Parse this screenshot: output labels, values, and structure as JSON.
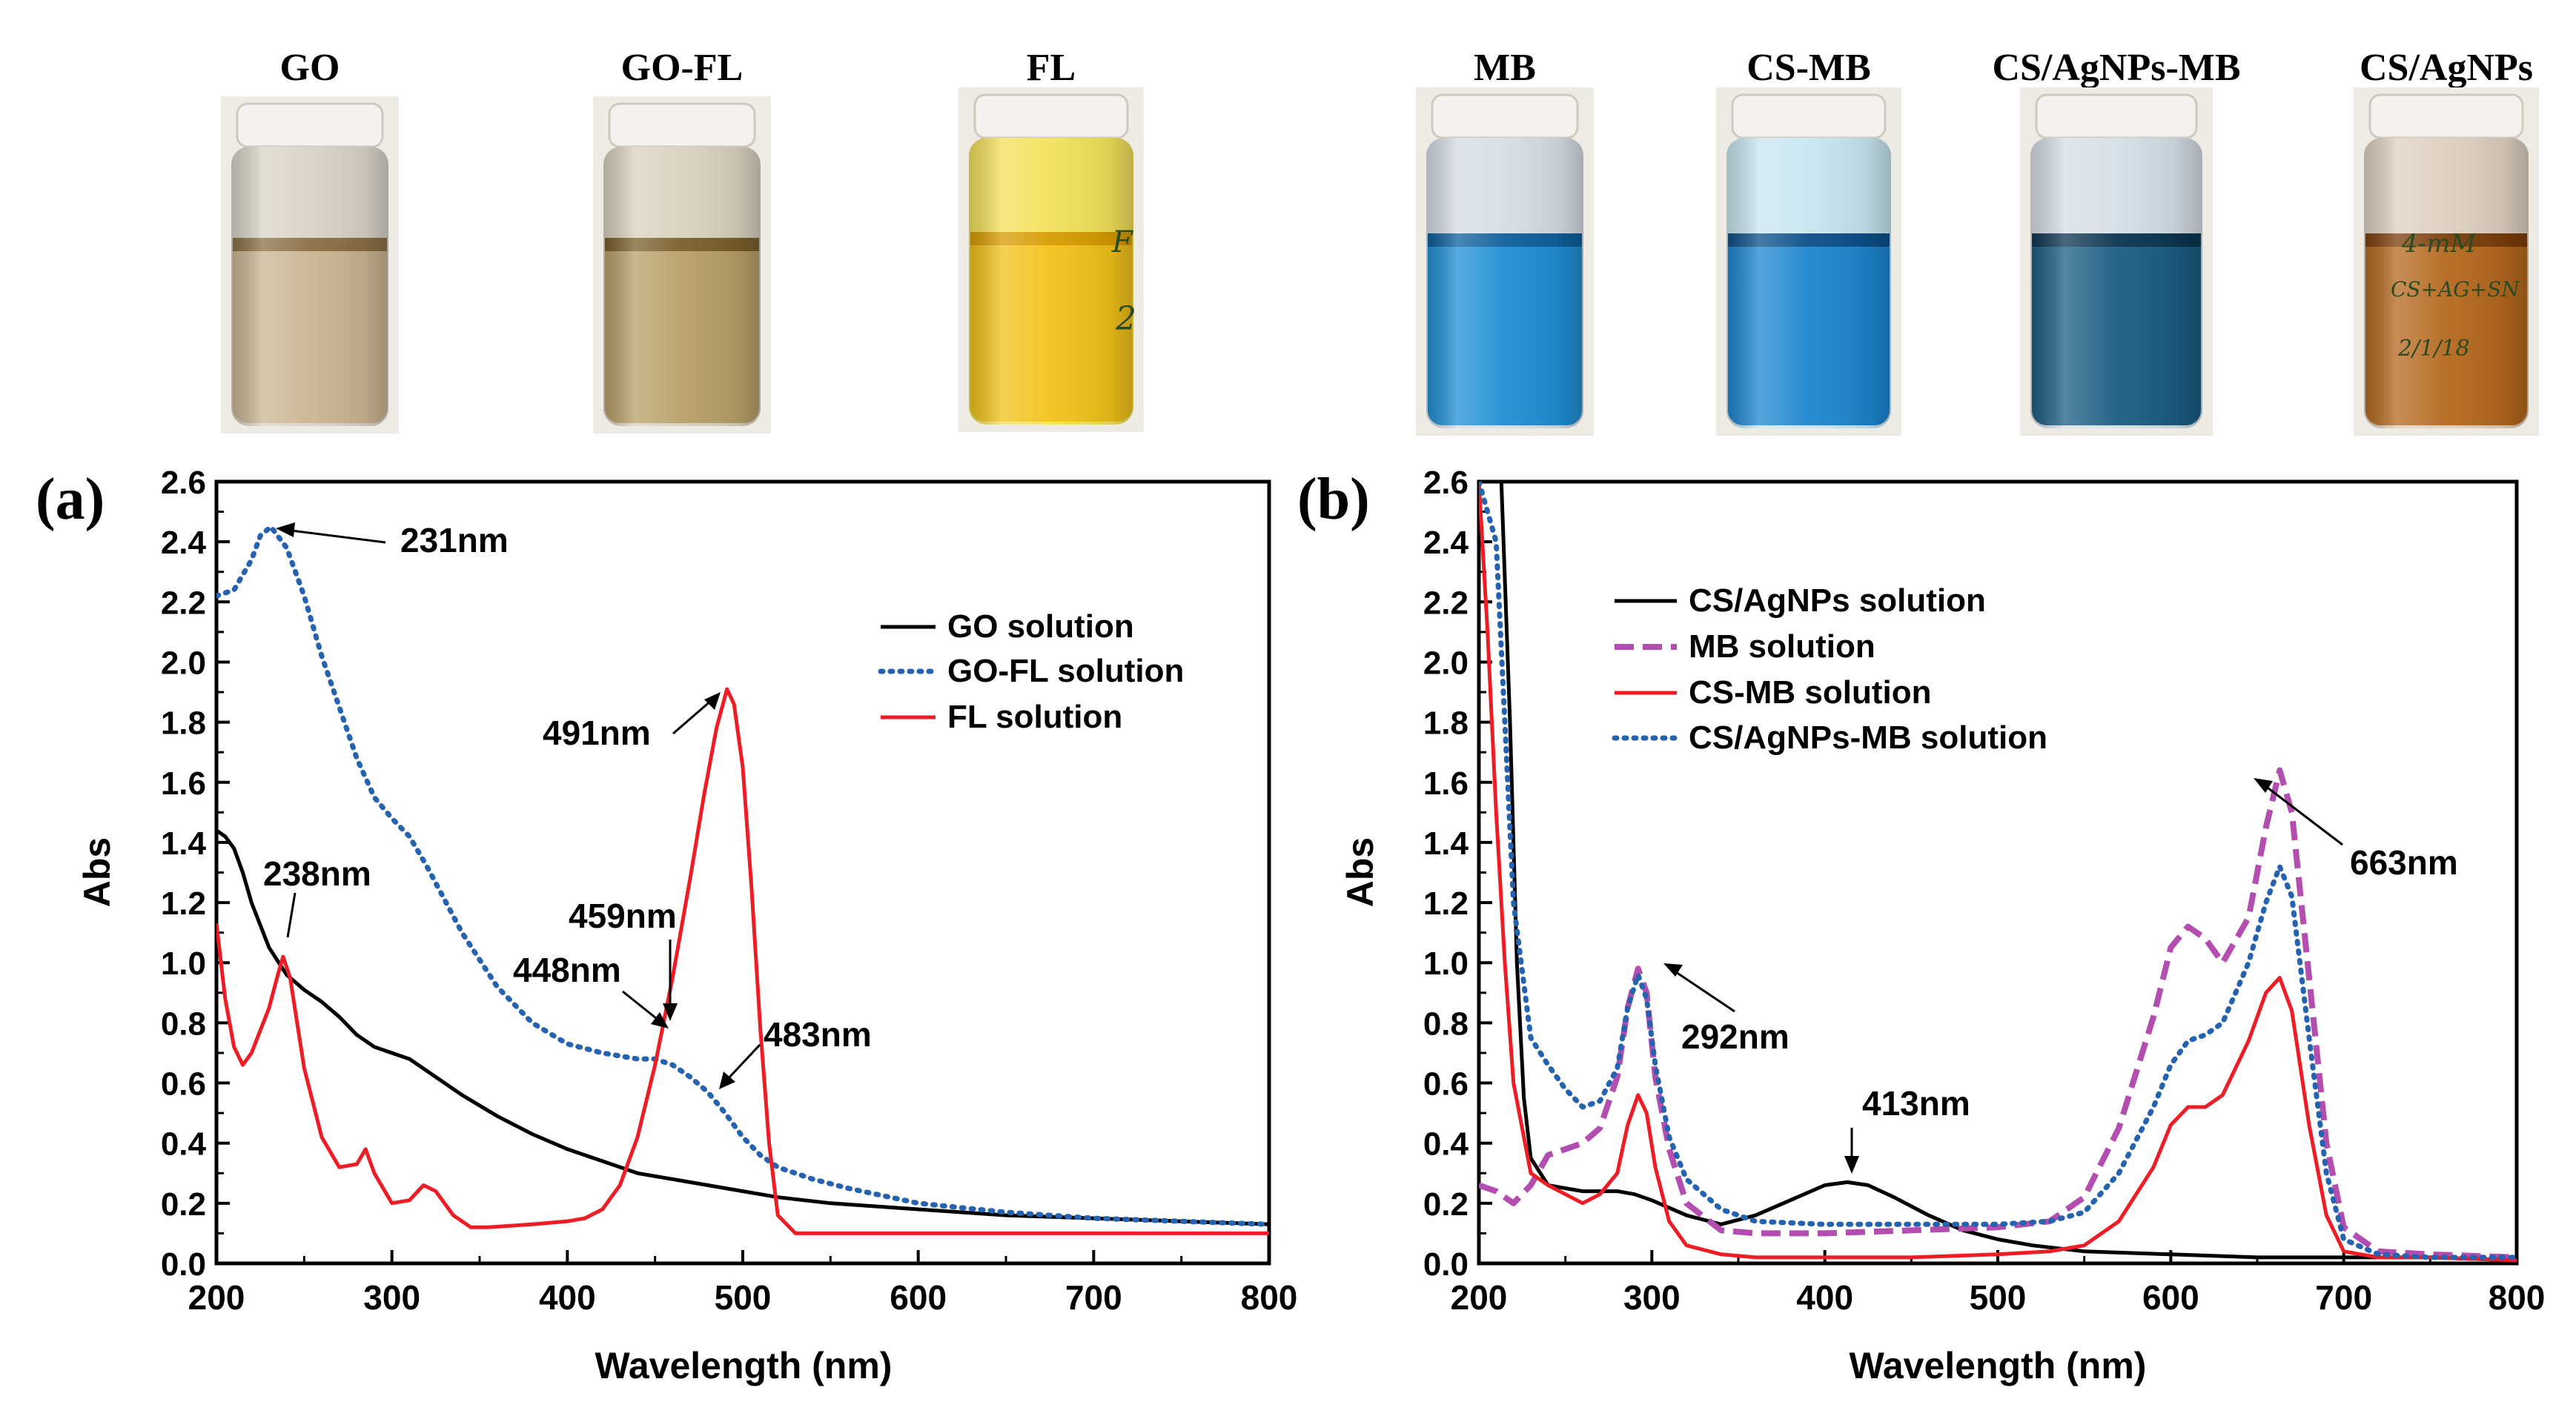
{
  "vials": [
    {
      "label": "GO",
      "liquid": "#c9b592",
      "top_liquid": "#8a6f45",
      "glass": "#d9d4c9"
    },
    {
      "label": "GO-FL",
      "liquid": "#b7a068",
      "top_liquid": "#7a5f2c",
      "glass": "#d8d2c0"
    },
    {
      "label": "FL",
      "liquid": "#f1c21a",
      "top_liquid": "#d89b00",
      "glass": "#f3e15a"
    },
    {
      "label": "MB",
      "liquid": "#1f8fd3",
      "top_liquid": "#0d5f9c",
      "glass": "#d6dde4"
    },
    {
      "label": "CS-MB",
      "liquid": "#1d86cf",
      "top_liquid": "#0b4f88",
      "glass": "#c9e6f0"
    },
    {
      "label": "CS/AgNPs-MB",
      "liquid": "#1b5c82",
      "top_liquid": "#0c3550",
      "glass": "#d5dfe6"
    },
    {
      "label": "CS/AgNPs",
      "liquid": "#b4681e",
      "top_liquid": "#7b3d0a",
      "glass": "#ddd0c0"
    }
  ],
  "vial_handwriting": {
    "fl": "F",
    "fl2": "2",
    "cs_agnps_1": "4-mM",
    "cs_agnps_2": "CS+AG+SN",
    "cs_agnps_3": "2/1/18"
  },
  "chart_data": [
    {
      "panel": "(a)",
      "type": "line",
      "xlabel": "Wavelength (nm)",
      "ylabel": "Abs",
      "xlim": [
        200,
        800
      ],
      "ylim": [
        0,
        2.6
      ],
      "xticks": [
        200,
        300,
        400,
        500,
        600,
        700,
        800
      ],
      "yticks": [
        "0.0",
        "0.2",
        "0.4",
        "0.6",
        "0.8",
        "1.0",
        "1.2",
        "1.4",
        "1.6",
        "1.8",
        "2.0",
        "2.2",
        "2.4",
        "2.6"
      ],
      "legend": "top-right",
      "series": [
        {
          "name": "GO solution",
          "color": "#000000",
          "style": "solid",
          "x": [
            200,
            205,
            210,
            215,
            220,
            230,
            240,
            250,
            260,
            270,
            280,
            290,
            300,
            310,
            320,
            340,
            360,
            380,
            400,
            420,
            440,
            460,
            480,
            500,
            520,
            550,
            600,
            650,
            700,
            750,
            800
          ],
          "y": [
            1.44,
            1.42,
            1.38,
            1.3,
            1.2,
            1.05,
            0.96,
            0.91,
            0.87,
            0.82,
            0.76,
            0.72,
            0.7,
            0.68,
            0.64,
            0.56,
            0.49,
            0.43,
            0.38,
            0.34,
            0.3,
            0.28,
            0.26,
            0.24,
            0.22,
            0.2,
            0.18,
            0.16,
            0.15,
            0.14,
            0.13
          ]
        },
        {
          "name": "GO-FL solution",
          "color": "#2563b0",
          "style": "dotted",
          "x": [
            200,
            210,
            220,
            225,
            231,
            240,
            250,
            260,
            270,
            280,
            290,
            300,
            310,
            320,
            340,
            360,
            380,
            400,
            420,
            440,
            450,
            460,
            470,
            480,
            490,
            500,
            510,
            520,
            540,
            560,
            600,
            650,
            700,
            750,
            800
          ],
          "y": [
            2.22,
            2.24,
            2.34,
            2.42,
            2.45,
            2.38,
            2.22,
            2.02,
            1.85,
            1.68,
            1.55,
            1.48,
            1.42,
            1.32,
            1.1,
            0.92,
            0.8,
            0.73,
            0.7,
            0.68,
            0.68,
            0.66,
            0.62,
            0.57,
            0.5,
            0.42,
            0.36,
            0.32,
            0.28,
            0.25,
            0.2,
            0.17,
            0.15,
            0.14,
            0.13
          ]
        },
        {
          "name": "FL solution",
          "color": "#ee1c25",
          "style": "solid",
          "x": [
            200,
            205,
            210,
            215,
            220,
            230,
            235,
            238,
            242,
            250,
            260,
            270,
            280,
            285,
            290,
            300,
            310,
            318,
            325,
            335,
            345,
            355,
            380,
            400,
            410,
            420,
            430,
            440,
            450,
            460,
            470,
            478,
            485,
            491,
            495,
            500,
            505,
            510,
            515,
            520,
            530,
            550,
            600,
            700,
            800
          ],
          "y": [
            1.13,
            0.88,
            0.72,
            0.66,
            0.7,
            0.85,
            0.96,
            1.02,
            0.95,
            0.65,
            0.42,
            0.32,
            0.33,
            0.38,
            0.3,
            0.2,
            0.21,
            0.26,
            0.24,
            0.16,
            0.12,
            0.12,
            0.13,
            0.14,
            0.15,
            0.18,
            0.26,
            0.42,
            0.66,
            0.95,
            1.28,
            1.56,
            1.78,
            1.91,
            1.86,
            1.65,
            1.25,
            0.78,
            0.4,
            0.16,
            0.1,
            0.1,
            0.1,
            0.1,
            0.1
          ]
        }
      ],
      "annotations": [
        "231nm",
        "238nm",
        "491nm",
        "459nm",
        "448nm",
        "483nm"
      ]
    },
    {
      "panel": "(b)",
      "type": "line",
      "xlabel": "Wavelength (nm)",
      "ylabel": "Abs",
      "xlim": [
        200,
        800
      ],
      "ylim": [
        0,
        2.6
      ],
      "xticks": [
        200,
        300,
        400,
        500,
        600,
        700,
        800
      ],
      "yticks": [
        "0.0",
        "0.2",
        "0.4",
        "0.6",
        "0.8",
        "1.0",
        "1.2",
        "1.4",
        "1.6",
        "1.8",
        "2.0",
        "2.2",
        "2.4",
        "2.6"
      ],
      "legend": "top-left",
      "series": [
        {
          "name": "CS/AgNPs solution",
          "color": "#000000",
          "style": "solid",
          "x": [
            213,
            218,
            222,
            226,
            230,
            240,
            250,
            260,
            270,
            280,
            290,
            300,
            320,
            340,
            360,
            380,
            400,
            413,
            425,
            440,
            460,
            480,
            500,
            520,
            550,
            600,
            650,
            700,
            750,
            800
          ],
          "y": [
            2.6,
            1.8,
            1.0,
            0.55,
            0.35,
            0.26,
            0.25,
            0.24,
            0.24,
            0.24,
            0.23,
            0.21,
            0.16,
            0.13,
            0.16,
            0.21,
            0.26,
            0.27,
            0.26,
            0.22,
            0.16,
            0.11,
            0.08,
            0.06,
            0.04,
            0.03,
            0.02,
            0.02,
            0.02,
            0.01
          ]
        },
        {
          "name": "MB solution",
          "color": "#b44db0",
          "style": "dashed",
          "x": [
            200,
            210,
            220,
            230,
            240,
            250,
            260,
            270,
            280,
            286,
            292,
            297,
            302,
            310,
            320,
            340,
            360,
            400,
            450,
            500,
            530,
            550,
            570,
            590,
            600,
            610,
            620,
            630,
            645,
            655,
            663,
            670,
            680,
            690,
            700,
            720,
            750,
            800
          ],
          "y": [
            0.26,
            0.24,
            0.2,
            0.26,
            0.36,
            0.38,
            0.4,
            0.45,
            0.62,
            0.85,
            0.98,
            0.9,
            0.62,
            0.38,
            0.2,
            0.11,
            0.1,
            0.1,
            0.11,
            0.12,
            0.14,
            0.22,
            0.45,
            0.82,
            1.05,
            1.12,
            1.08,
            1.0,
            1.15,
            1.45,
            1.64,
            1.5,
            0.95,
            0.4,
            0.12,
            0.04,
            0.03,
            0.02
          ]
        },
        {
          "name": "CS-MB solution",
          "color": "#ee1c25",
          "style": "solid",
          "x": [
            200,
            205,
            210,
            215,
            220,
            230,
            240,
            250,
            260,
            270,
            280,
            286,
            292,
            297,
            302,
            310,
            320,
            340,
            360,
            400,
            450,
            500,
            530,
            550,
            570,
            590,
            600,
            610,
            620,
            630,
            645,
            655,
            663,
            670,
            680,
            690,
            700,
            720,
            750,
            800
          ],
          "y": [
            2.6,
            2.1,
            1.5,
            1.0,
            0.6,
            0.3,
            0.26,
            0.23,
            0.2,
            0.23,
            0.3,
            0.46,
            0.56,
            0.5,
            0.32,
            0.14,
            0.06,
            0.03,
            0.02,
            0.02,
            0.02,
            0.03,
            0.04,
            0.06,
            0.14,
            0.32,
            0.46,
            0.52,
            0.52,
            0.56,
            0.74,
            0.9,
            0.95,
            0.84,
            0.46,
            0.16,
            0.04,
            0.02,
            0.02,
            0.01
          ]
        },
        {
          "name": "CS/AgNPs-MB solution",
          "color": "#2563b0",
          "style": "dotted",
          "x": [
            200,
            210,
            215,
            220,
            230,
            240,
            250,
            260,
            270,
            280,
            286,
            292,
            297,
            302,
            310,
            320,
            340,
            360,
            400,
            450,
            500,
            530,
            550,
            570,
            590,
            600,
            610,
            620,
            630,
            645,
            655,
            663,
            670,
            680,
            690,
            700,
            720,
            750,
            800
          ],
          "y": [
            2.6,
            2.4,
            1.8,
            1.2,
            0.75,
            0.66,
            0.58,
            0.52,
            0.54,
            0.65,
            0.85,
            0.96,
            0.88,
            0.66,
            0.42,
            0.28,
            0.18,
            0.14,
            0.13,
            0.13,
            0.13,
            0.14,
            0.17,
            0.3,
            0.52,
            0.66,
            0.74,
            0.76,
            0.8,
            1.0,
            1.2,
            1.32,
            1.22,
            0.75,
            0.3,
            0.08,
            0.03,
            0.02,
            0.02
          ]
        }
      ],
      "annotations": [
        "292nm",
        "413nm",
        "663nm"
      ]
    }
  ]
}
